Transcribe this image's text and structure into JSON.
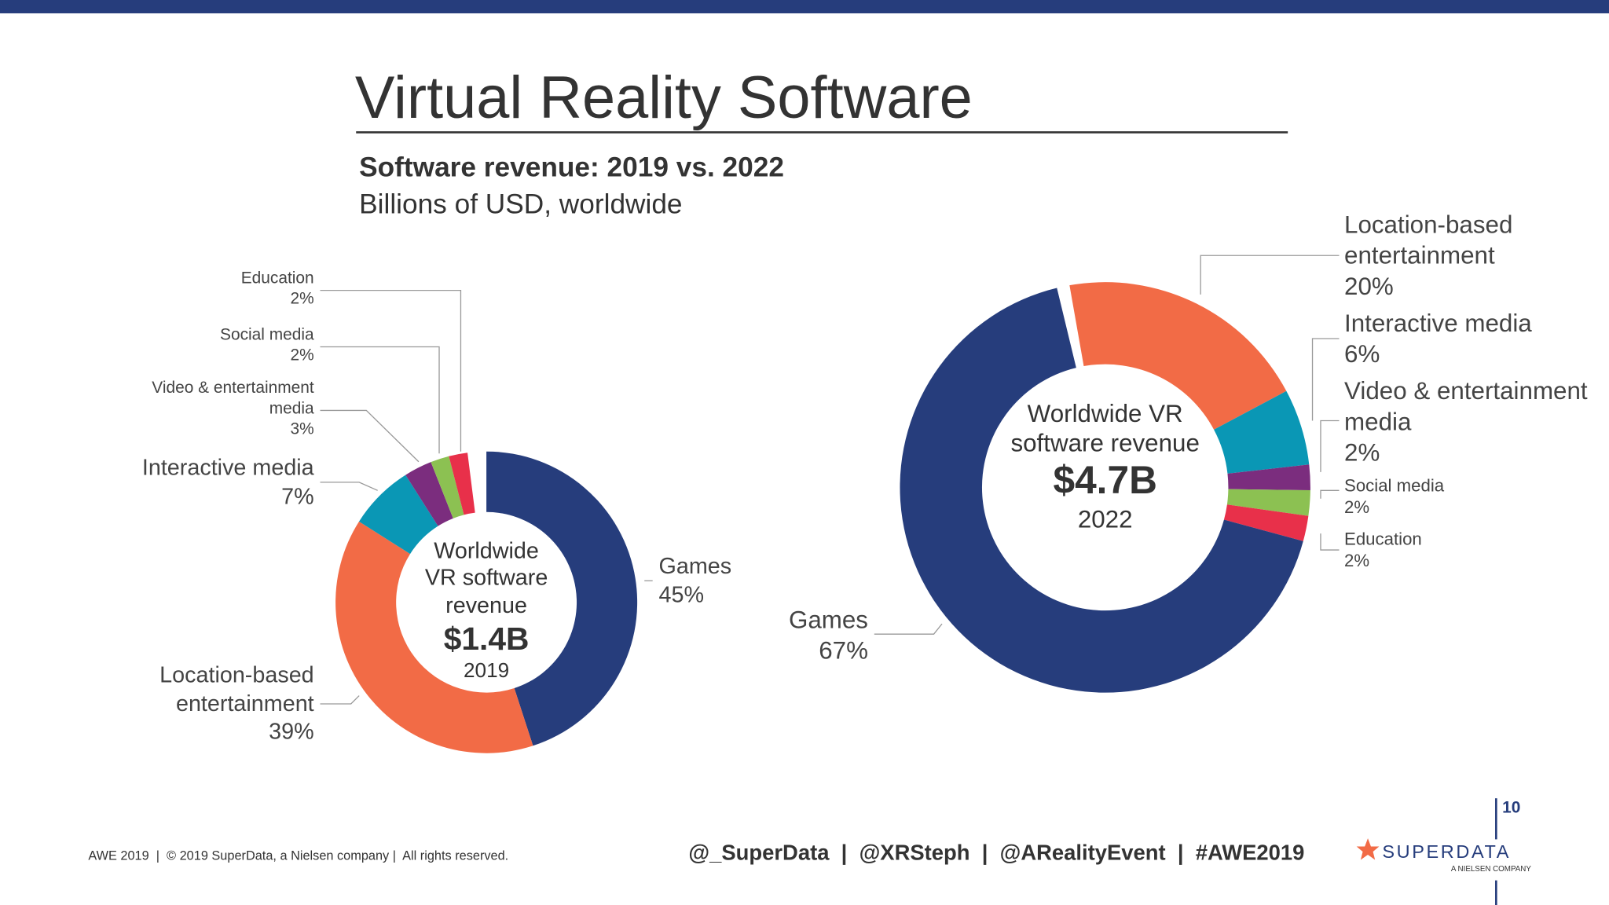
{
  "title": "Virtual Reality Software",
  "subtitle": "Software revenue: 2019 vs. 2022",
  "subtitle_note": "Billions of USD, worldwide",
  "chart_data": [
    {
      "type": "donut",
      "categories": [
        "Games",
        "Location-based entertainment",
        "Interactive media",
        "Video & entertainment media",
        "Social media",
        "Education"
      ],
      "values": [
        45,
        39,
        7,
        3,
        2,
        2
      ],
      "value_labels": [
        "45%",
        "39%",
        "7%",
        "3%",
        "2%",
        "2%"
      ],
      "colors": [
        "#263d7c",
        "#f26b46",
        "#0a97b5",
        "#7b2d7e",
        "#8cc152",
        "#e8304a"
      ],
      "center_label": "Worldwide VR software revenue",
      "total_label": "$1.4B",
      "year": "2019"
    },
    {
      "type": "donut",
      "categories": [
        "Location-based entertainment",
        "Interactive media",
        "Video & entertainment media",
        "Social media",
        "Education",
        "Games"
      ],
      "values": [
        20,
        6,
        2,
        2,
        2,
        67
      ],
      "value_labels": [
        "20%",
        "6%",
        "2%",
        "2%",
        "2%",
        "67%"
      ],
      "colors": [
        "#f26b46",
        "#0a97b5",
        "#7b2d7e",
        "#8cc152",
        "#e8304a",
        "#263d7c"
      ],
      "center_label": "Worldwide VR software revenue",
      "total_label": "$4.7B",
      "year": "2022"
    }
  ],
  "footer": {
    "copyright": "AWE 2019  |  © 2019 SuperData, a Nielsen company |  All rights reserved.",
    "handles": "@_SuperData  |  @XRSteph  |  @ARealityEvent  |  #AWE2019",
    "logo": "SUPERDATA",
    "logo_tagline": "A NIELSEN COMPANY",
    "page_number": "10"
  }
}
